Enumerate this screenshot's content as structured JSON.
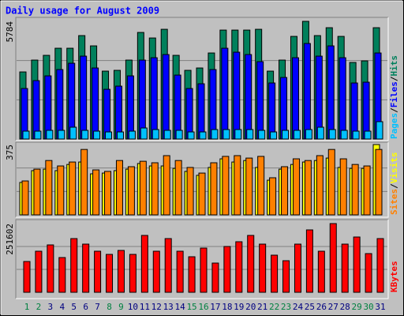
{
  "title": "Daily usage for August 2009",
  "legend_separator": "/",
  "chart_data": [
    {
      "type": "bar",
      "ylim": [
        0,
        5784
      ],
      "yticks": [
        5784
      ],
      "grid": true,
      "series": [
        {
          "name": "Hits",
          "color": "#00805c",
          "values": [
            3298,
            3880,
            4113,
            4462,
            4462,
            5083,
            4578,
            3337,
            3376,
            3880,
            5238,
            4966,
            5393,
            4113,
            3376,
            3492,
            4229,
            5354,
            5354,
            5354,
            5393,
            3337,
            3880,
            5044,
            5784,
            5083,
            5471,
            5044,
            3764,
            3841,
            5471
          ]
        },
        {
          "name": "Files",
          "color": "#0000ff",
          "values": [
            2483,
            2871,
            3104,
            3414,
            3725,
            4074,
            3492,
            2444,
            2600,
            3104,
            3880,
            3996,
            4152,
            3143,
            2483,
            2716,
            3414,
            4462,
            4268,
            4152,
            3802,
            2755,
            3026,
            3996,
            4695,
            4074,
            4578,
            3996,
            2755,
            2794,
            4229
          ]
        },
        {
          "name": "Pages",
          "color": "#00c0ff",
          "values": [
            388,
            388,
            427,
            427,
            582,
            427,
            388,
            349,
            349,
            388,
            543,
            466,
            427,
            427,
            349,
            349,
            466,
            466,
            466,
            466,
            427,
            349,
            427,
            427,
            466,
            582,
            466,
            427,
            388,
            388,
            854
          ]
        }
      ]
    },
    {
      "type": "bar",
      "ylim": [
        0,
        375
      ],
      "yticks": [
        375
      ],
      "grid": true,
      "series": [
        {
          "name": "Visits",
          "color": "#ffff00",
          "values": [
            173,
            236,
            244,
            236,
            269,
            282,
            219,
            223,
            236,
            244,
            274,
            261,
            261,
            248,
            232,
            211,
            253,
            299,
            282,
            290,
            253,
            185,
            244,
            269,
            282,
            290,
            303,
            253,
            248,
            248,
            375
          ]
        },
        {
          "name": "Sites",
          "color": "#ff8000",
          "values": [
            181,
            244,
            290,
            261,
            282,
            349,
            240,
            232,
            290,
            257,
            286,
            278,
            316,
            290,
            253,
            223,
            278,
            312,
            316,
            303,
            312,
            198,
            257,
            299,
            290,
            316,
            349,
            299,
            269,
            261,
            349
          ]
        }
      ]
    },
    {
      "type": "bar",
      "ylim": [
        0,
        251602
      ],
      "yticks": [
        251602
      ],
      "grid": true,
      "categories": [
        "1",
        "2",
        "3",
        "4",
        "5",
        "6",
        "7",
        "8",
        "9",
        "10",
        "11",
        "12",
        "13",
        "14",
        "15",
        "16",
        "17",
        "18",
        "19",
        "20",
        "21",
        "22",
        "23",
        "24",
        "25",
        "26",
        "27",
        "28",
        "29",
        "30",
        "31"
      ],
      "category_colors": [
        "#008040",
        "#008040",
        "#000080",
        "#000080",
        "#000080",
        "#000080",
        "#000080",
        "#008040",
        "#008040",
        "#000080",
        "#000080",
        "#000080",
        "#000080",
        "#000080",
        "#008040",
        "#008040",
        "#000080",
        "#000080",
        "#000080",
        "#000080",
        "#000080",
        "#008040",
        "#008040",
        "#000080",
        "#000080",
        "#000080",
        "#000080",
        "#000080",
        "#008040",
        "#008040",
        "#000080"
      ],
      "series": [
        {
          "name": "KBytes",
          "color": "#ff0000",
          "values": [
            112788,
            150384,
            173520,
            127248,
            196656,
            176412,
            150384,
            138816,
            153276,
            138816,
            208224,
            150384,
            196656,
            150384,
            130140,
            161952,
            107004,
            167736,
            185088,
            208224,
            176412,
            135924,
            115680,
            176412,
            228468,
            150384,
            251602,
            176412,
            202440,
            141708,
            196656
          ]
        }
      ]
    }
  ]
}
